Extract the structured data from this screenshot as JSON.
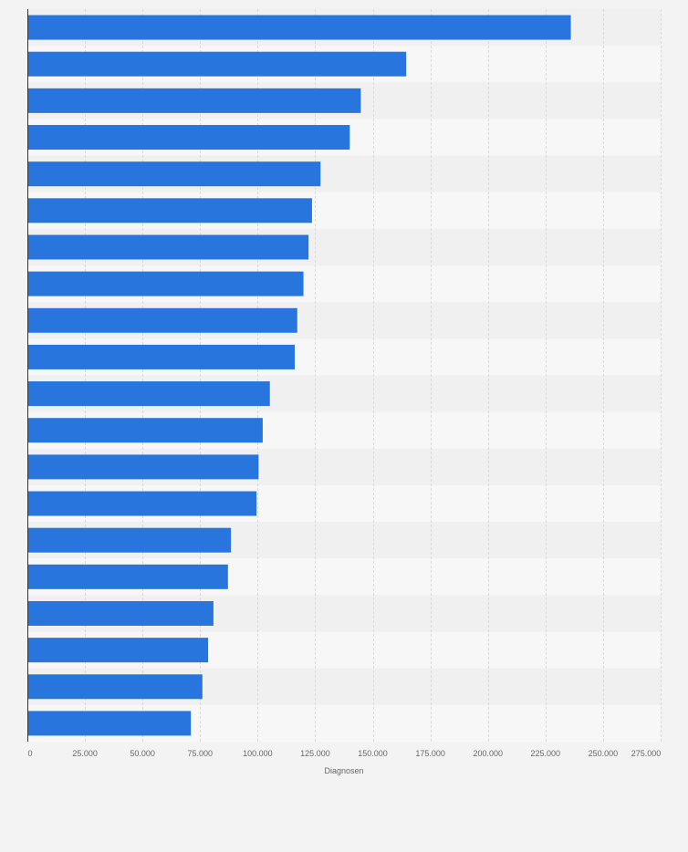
{
  "chart_data": {
    "type": "bar",
    "orientation": "horizontal",
    "title": "",
    "xlabel": "Diagnosen",
    "ylabel": "",
    "xlim": [
      0,
      275000
    ],
    "x_ticks": [
      0,
      25000,
      50000,
      75000,
      100000,
      125000,
      150000,
      175000,
      200000,
      225000,
      250000,
      275000
    ],
    "x_tick_labels": [
      "0",
      "25.000",
      "50.000",
      "75.000",
      "100.000",
      "125.000",
      "150.000",
      "175.000",
      "200.000",
      "225.000",
      "250.000",
      "275.000"
    ],
    "categories": [
      "",
      "",
      "",
      "",
      "",
      "",
      "",
      "",
      "",
      "",
      "",
      "",
      "",
      "",
      "",
      "",
      "",
      "",
      "",
      ""
    ],
    "values": [
      236000,
      164500,
      144800,
      140000,
      127300,
      123600,
      122100,
      119900,
      117200,
      116100,
      105300,
      102200,
      100400,
      99500,
      88400,
      87100,
      80800,
      78500,
      76000,
      71000
    ],
    "grid": true,
    "colors": {
      "bar": "#2876dd",
      "band_light": "#f7f7f7",
      "band_dark": "#f0f0f0",
      "grid": "#d9d9d9",
      "axis": "#333333",
      "text": "#666666"
    }
  }
}
